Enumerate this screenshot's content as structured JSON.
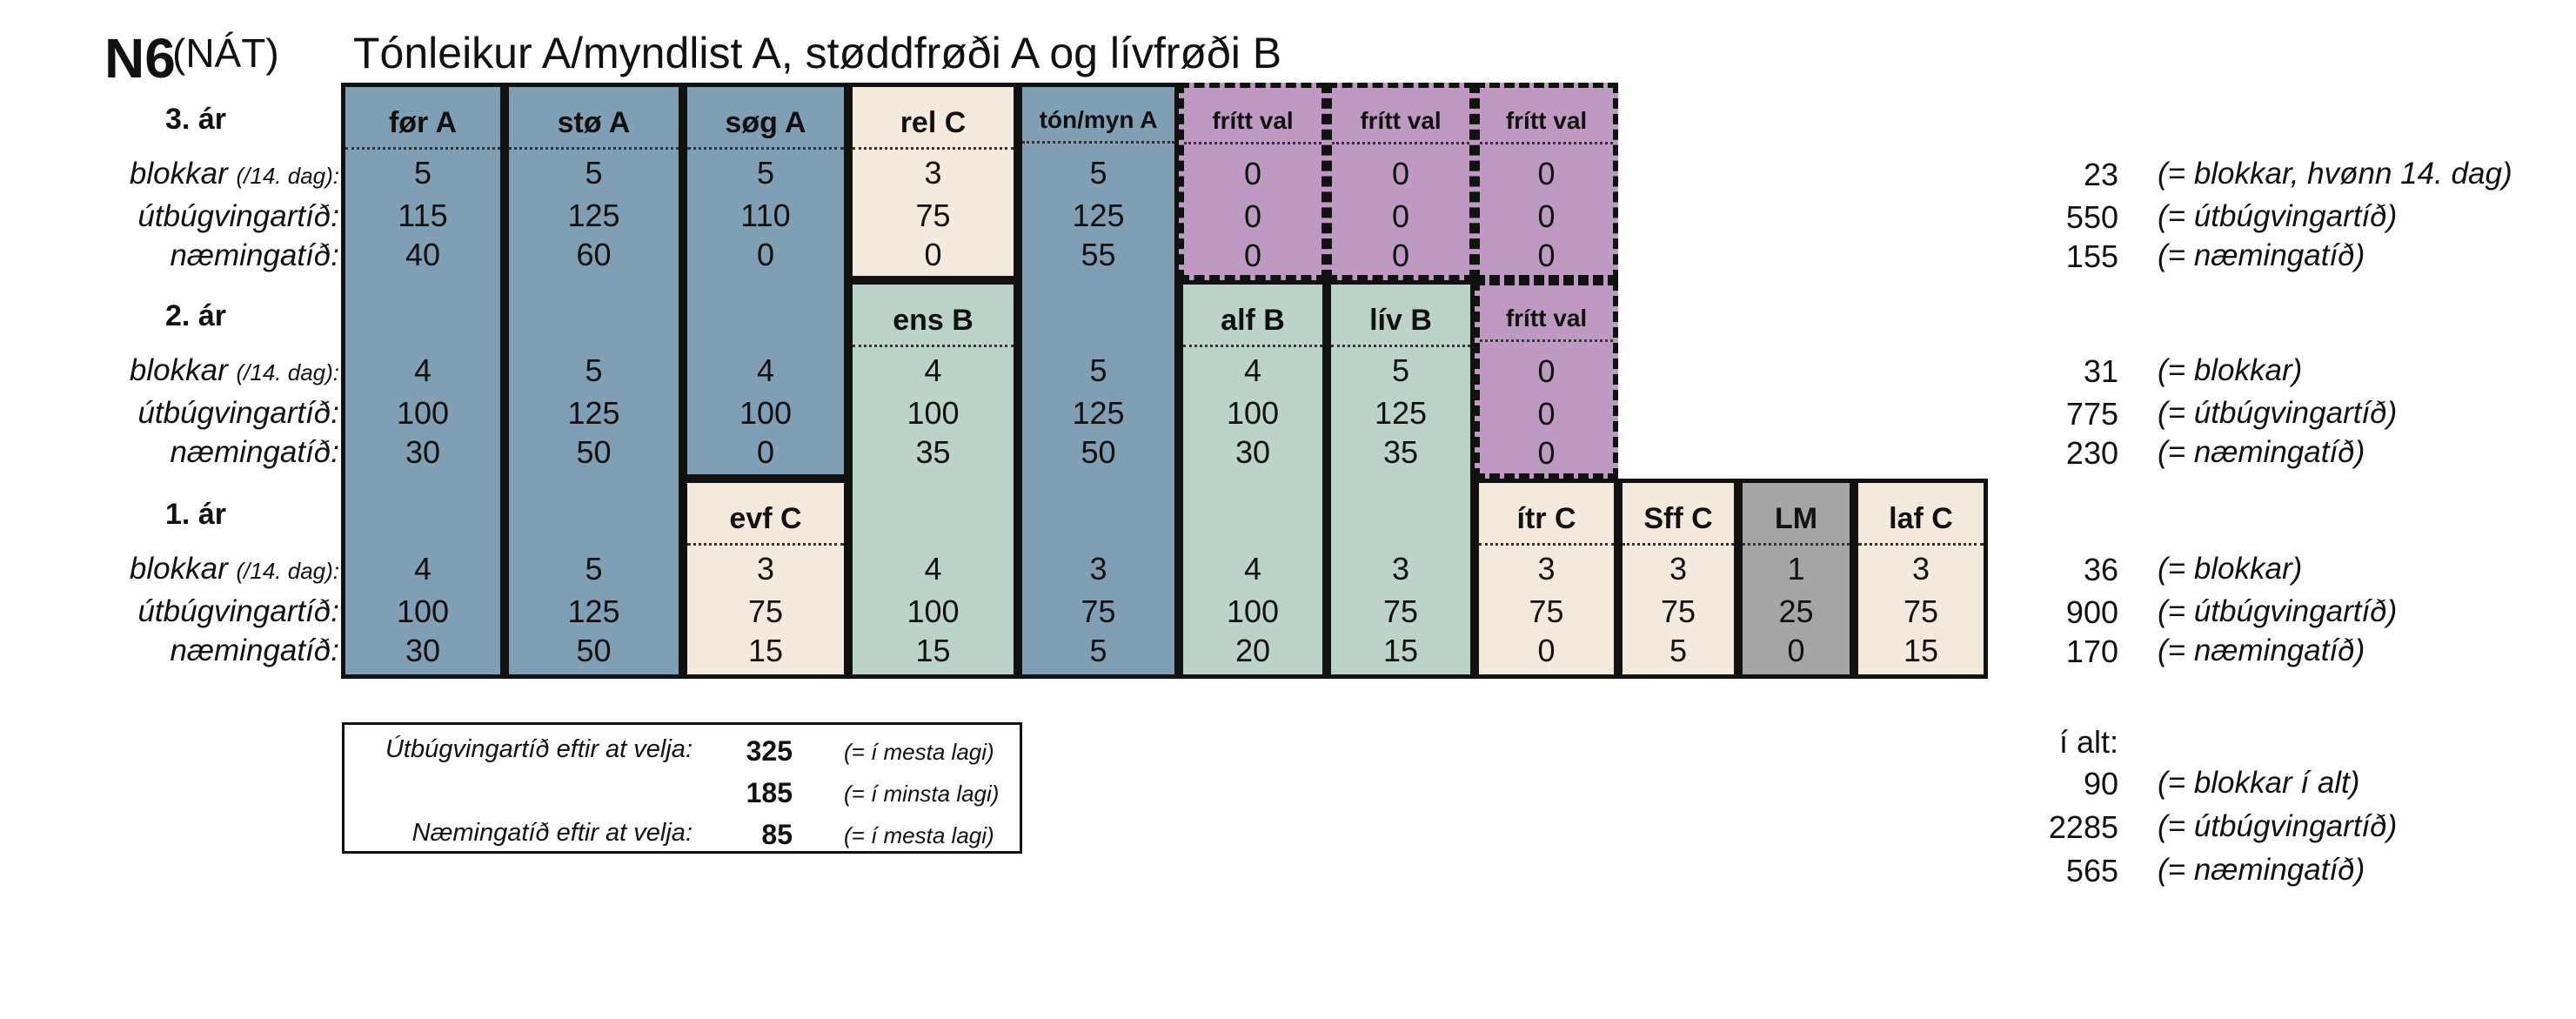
{
  "header": {
    "code": "N6",
    "program": "(NÁT)",
    "title": "Tónleikur A/myndlist A, støddfrøði A og lívfrøði B"
  },
  "colors": {
    "blue": "#819fb4",
    "cream": "#f3e9dd",
    "green": "#bcd3c7",
    "purple": "#be9ac2",
    "gray": "#a6a5a4"
  },
  "years": [
    {
      "label": "3. ár",
      "row_labels": [
        "blokkar",
        "útbúgvingartíð:",
        "næmingatíð:"
      ],
      "blokkar_suffix": "(/14. dag):"
    },
    {
      "label": "2. ár",
      "row_labels": [
        "blokkar",
        "útbúgvingartíð:",
        "næmingatíð:"
      ],
      "blokkar_suffix": "(/14. dag):"
    },
    {
      "label": "1. ár",
      "row_labels": [
        "blokkar",
        "útbúgvingartíð:",
        "næmingatíð:"
      ],
      "blokkar_suffix": "(/14. dag):"
    }
  ],
  "courses": [
    {
      "code": "før A",
      "color": "blue",
      "values": [
        "5",
        "115",
        "40",
        "4",
        "100",
        "30",
        "4",
        "100",
        "30"
      ]
    },
    {
      "code": "stø A",
      "color": "blue",
      "values": [
        "5",
        "125",
        "60",
        "5",
        "125",
        "50",
        "5",
        "125",
        "50"
      ]
    },
    {
      "code": "søg A",
      "color": "blue",
      "values": [
        "5",
        "110",
        "0",
        "4",
        "100",
        "0"
      ]
    },
    {
      "code": "evf C",
      "color": "cream",
      "values": [
        "3",
        "75",
        "15"
      ]
    },
    {
      "code": "rel C",
      "color": "cream",
      "values": [
        "3",
        "75",
        "0"
      ]
    },
    {
      "code": "ens B",
      "color": "green",
      "values": [
        "4",
        "100",
        "35",
        "4",
        "100",
        "15"
      ]
    },
    {
      "code": "tón/myn A",
      "color": "blue",
      "values": [
        "5",
        "125",
        "55",
        "5",
        "125",
        "50",
        "3",
        "75",
        "5"
      ]
    },
    {
      "code": "frítt val",
      "color": "purple",
      "values": [
        "0",
        "0",
        "0"
      ]
    },
    {
      "code": "frítt val",
      "color": "purple",
      "values": [
        "0",
        "0",
        "0"
      ]
    },
    {
      "code": "frítt val",
      "color": "purple",
      "values": [
        "0",
        "0",
        "0"
      ]
    },
    {
      "code": "alf B",
      "color": "green",
      "values": [
        "4",
        "100",
        "30",
        "4",
        "100",
        "20"
      ]
    },
    {
      "code": "lív B",
      "color": "green",
      "values": [
        "5",
        "125",
        "35",
        "3",
        "75",
        "15"
      ]
    },
    {
      "code": "frítt val",
      "color": "purple",
      "values": [
        "0",
        "0",
        "0"
      ]
    },
    {
      "code": "ítr C",
      "color": "cream",
      "values": [
        "3",
        "75",
        "0"
      ]
    },
    {
      "code": "Sff C",
      "color": "cream",
      "values": [
        "3",
        "75",
        "5"
      ]
    },
    {
      "code": "LM",
      "color": "gray",
      "values": [
        "1",
        "25",
        "0"
      ]
    },
    {
      "code": "laf C",
      "color": "cream",
      "values": [
        "3",
        "75",
        "15"
      ]
    }
  ],
  "totals": [
    {
      "value": "23",
      "note": "(= blokkar, hvønn 14. dag)"
    },
    {
      "value": "550",
      "note": "(= útbúgvingartíð)"
    },
    {
      "value": "155",
      "note": "(= næmingatíð)"
    },
    {
      "value": "31",
      "note": "(= blokkar)"
    },
    {
      "value": "775",
      "note": "(= útbúgvingartíð)"
    },
    {
      "value": "230",
      "note": "(= næmingatíð)"
    },
    {
      "value": "36",
      "note": "(= blokkar)"
    },
    {
      "value": "900",
      "note": "(= útbúgvingartíð)"
    },
    {
      "value": "170",
      "note": "(= næmingatíð)"
    }
  ],
  "grand_total": {
    "label": "í alt:",
    "rows": [
      {
        "value": "90",
        "note": "(= blokkar í alt)"
      },
      {
        "value": "2285",
        "note": "(= útbúgvingartíð)"
      },
      {
        "value": "565",
        "note": "(= næmingatíð)"
      }
    ]
  },
  "choices_box": {
    "rows": [
      {
        "label": "Útbúgvingartíð eftir at velja:",
        "value": "325",
        "note": "(= í mesta lagi)"
      },
      {
        "label": "",
        "value": "185",
        "note": "(= í minsta lagi)"
      },
      {
        "label": "Næmingatíð eftir at velja:",
        "value": "85",
        "note": "(= í mesta lagi)"
      }
    ]
  }
}
